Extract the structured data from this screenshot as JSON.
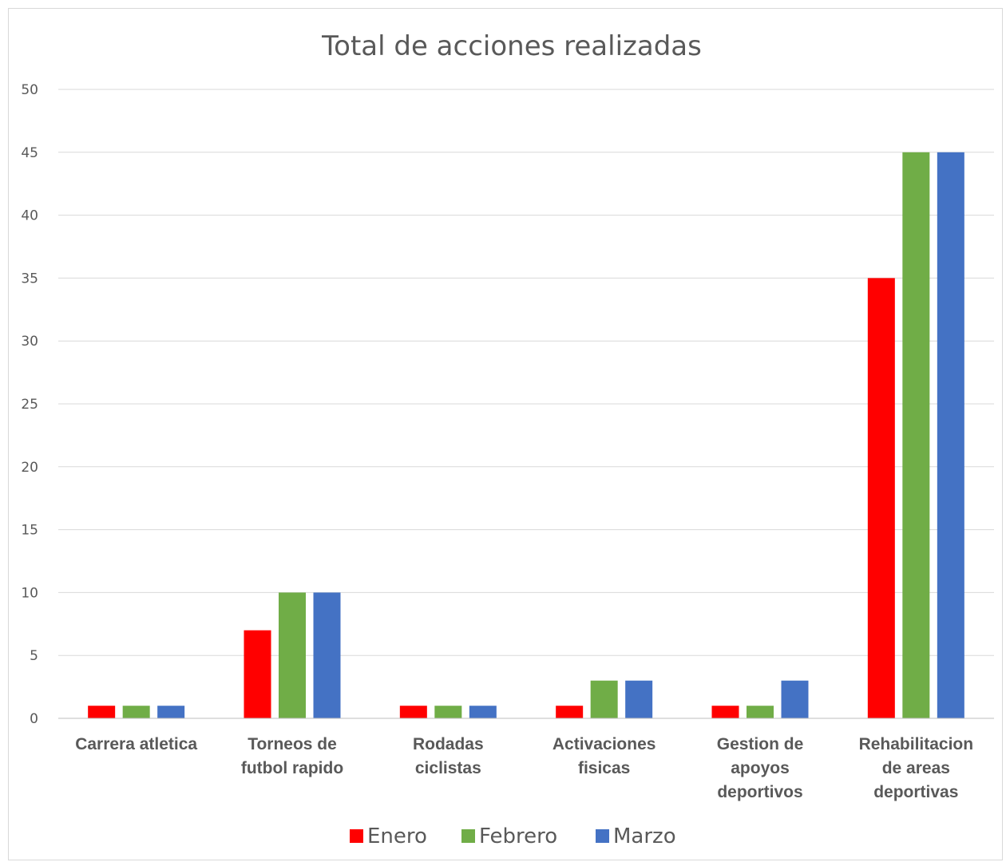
{
  "chart_data": {
    "type": "bar",
    "title": "Total de acciones realizadas",
    "xlabel": "",
    "ylabel": "",
    "ylim": [
      0,
      50
    ],
    "yticks": [
      0,
      5,
      10,
      15,
      20,
      25,
      30,
      35,
      40,
      45,
      50
    ],
    "grid": true,
    "legend_position": "bottom",
    "categories": [
      [
        "Carrera atletica"
      ],
      [
        "Torneos de",
        "futbol rapido"
      ],
      [
        "Rodadas",
        "ciclistas"
      ],
      [
        "Activaciones",
        "fisicas"
      ],
      [
        "Gestion de",
        "apoyos",
        "deportivos"
      ],
      [
        "Rehabilitacion",
        "de areas",
        "deportivas"
      ]
    ],
    "series": [
      {
        "name": "Enero",
        "color": "#ff0000",
        "values": [
          1,
          7,
          1,
          1,
          1,
          35
        ]
      },
      {
        "name": "Febrero",
        "color": "#70ad47",
        "values": [
          1,
          10,
          1,
          3,
          1,
          45
        ]
      },
      {
        "name": "Marzo",
        "color": "#4472c4",
        "values": [
          1,
          10,
          1,
          3,
          3,
          45
        ]
      }
    ]
  }
}
